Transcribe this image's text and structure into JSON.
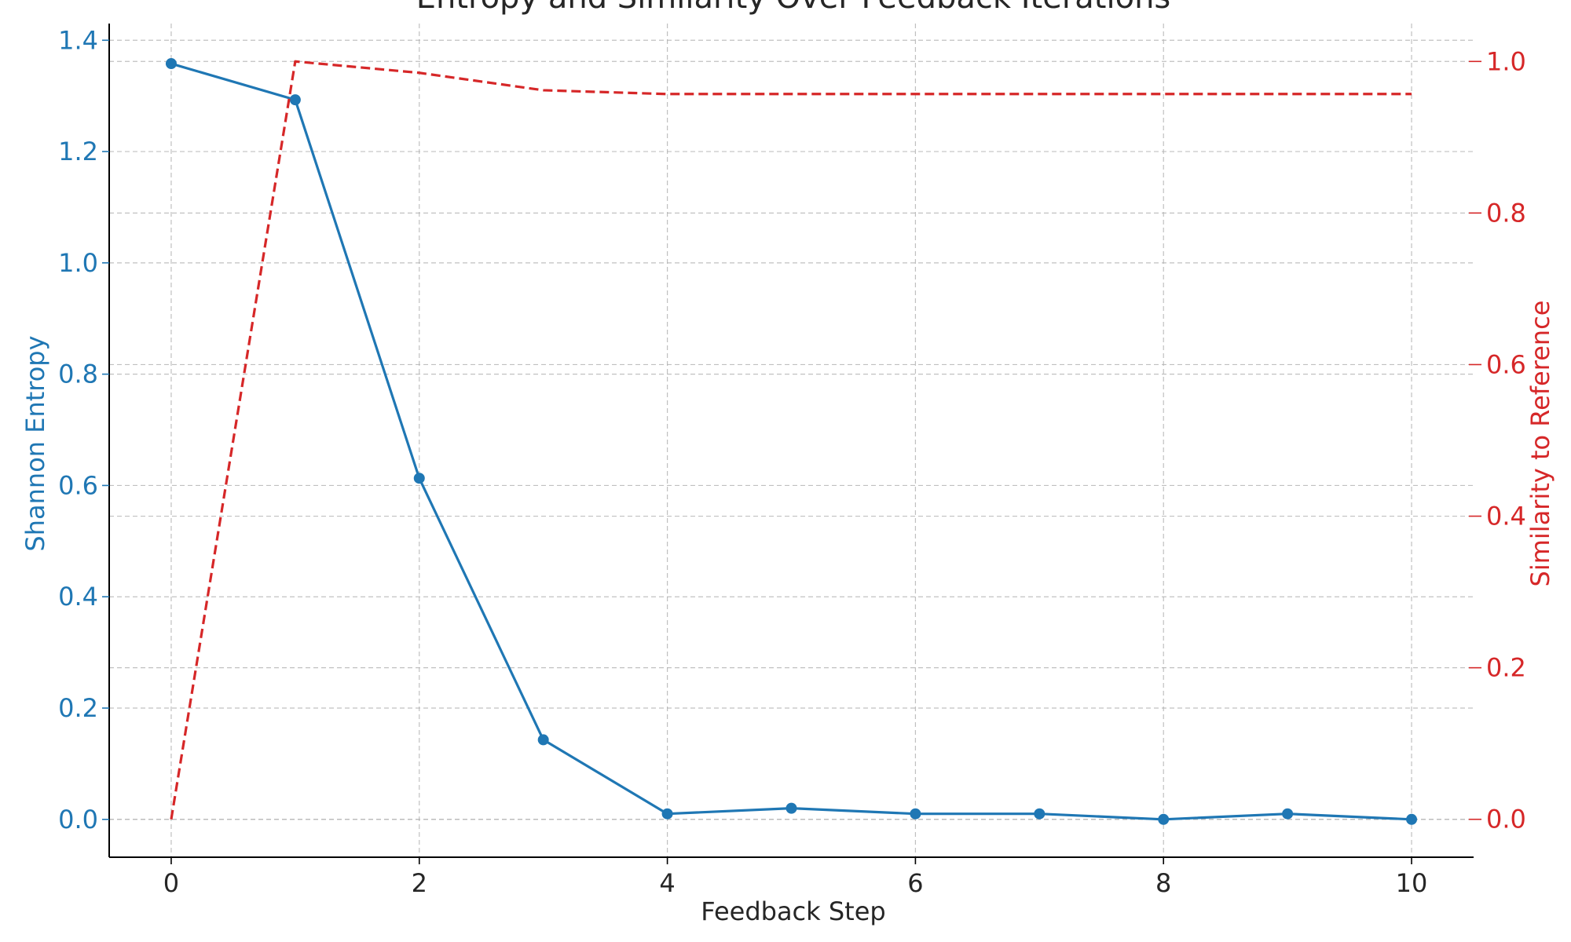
{
  "chart_data": {
    "type": "line",
    "title": "Entropy and Similarity Over Feedback Iterations",
    "xlabel": "Feedback Step",
    "ylabel_left": "Shannon Entropy",
    "ylabel_right": "Similarity to Reference",
    "x": [
      0,
      1,
      2,
      3,
      4,
      5,
      6,
      7,
      8,
      9,
      10
    ],
    "x_ticks": [
      "0",
      "2",
      "4",
      "6",
      "8",
      "10"
    ],
    "left_ticks": [
      "0.0",
      "0.2",
      "0.4",
      "0.6",
      "0.8",
      "1.0",
      "1.2",
      "1.4"
    ],
    "right_ticks": [
      "0.0",
      "0.2",
      "0.4",
      "0.6",
      "0.8",
      "1.0"
    ],
    "xlim": [
      -0.5,
      10.5
    ],
    "ylim_left": [
      -0.068,
      1.43
    ],
    "ylim_right": [
      -0.05,
      1.05
    ],
    "grid": true,
    "series": [
      {
        "axis": "left",
        "style": "solid-marker",
        "color": "#1f77b4",
        "values": [
          1.358,
          1.293,
          0.613,
          0.143,
          0.01,
          0.02,
          0.01,
          0.01,
          0.0,
          0.01,
          0.0
        ]
      },
      {
        "axis": "right",
        "style": "dashed",
        "color": "#d62728",
        "values": [
          0.0,
          1.0,
          0.985,
          0.962,
          0.957,
          0.957,
          0.957,
          0.957,
          0.957,
          0.957,
          0.957
        ]
      }
    ]
  }
}
